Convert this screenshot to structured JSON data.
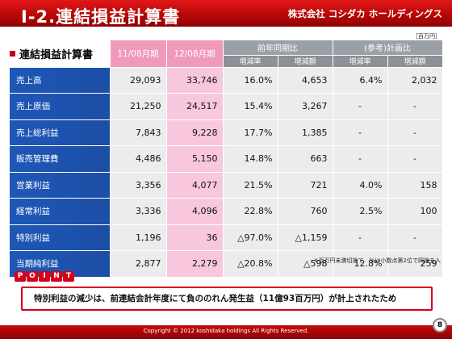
{
  "header": {
    "title": "Ⅰ-2.連結損益計算書",
    "company": "株式会社 コシダカ ホールディングス"
  },
  "unit": "［百万円］",
  "table_label": "連結損益計算書",
  "periods": [
    "11/08月期",
    "12/08月期"
  ],
  "groups": [
    "前年同期比",
    "(参考)計画比"
  ],
  "subheaders": [
    "増減率",
    "増減額",
    "増減率",
    "増減額"
  ],
  "rows": [
    {
      "label": "売上高",
      "p1": "29,093",
      "p2": "33,746",
      "yoy_rate": "16.0%",
      "yoy_amt": "4,653",
      "plan_rate": "6.4%",
      "plan_amt": "2,032"
    },
    {
      "label": "売上原価",
      "p1": "21,250",
      "p2": "24,517",
      "yoy_rate": "15.4%",
      "yoy_amt": "3,267",
      "plan_rate": "-",
      "plan_amt": "-"
    },
    {
      "label": "売上総利益",
      "p1": "7,843",
      "p2": "9,228",
      "yoy_rate": "17.7%",
      "yoy_amt": "1,385",
      "plan_rate": "-",
      "plan_amt": "-"
    },
    {
      "label": "販売管理費",
      "p1": "4,486",
      "p2": "5,150",
      "yoy_rate": "14.8%",
      "yoy_amt": "663",
      "plan_rate": "-",
      "plan_amt": "-"
    },
    {
      "label": "営業利益",
      "p1": "3,356",
      "p2": "4,077",
      "yoy_rate": "21.5%",
      "yoy_amt": "721",
      "plan_rate": "4.0%",
      "plan_amt": "158"
    },
    {
      "label": "経常利益",
      "p1": "3,336",
      "p2": "4,096",
      "yoy_rate": "22.8%",
      "yoy_amt": "760",
      "plan_rate": "2.5%",
      "plan_amt": "100"
    },
    {
      "label": "特別利益",
      "p1": "1,196",
      "p2": "36",
      "yoy_rate": "△97.0%",
      "yoy_amt": "△1,159",
      "plan_rate": "-",
      "plan_amt": "-"
    },
    {
      "label": "当期純利益",
      "p1": "2,877",
      "p2": "2,279",
      "yoy_rate": "△20.8%",
      "yoy_amt": "△598",
      "plan_rate": "12.8%",
      "plan_amt": "259"
    }
  ],
  "note": "※百万円未満切捨て　％は小数点第2位で四捨五入",
  "point": {
    "letters": [
      "P",
      "O",
      "I",
      "N",
      "T"
    ],
    "text": "特別利益の減少は、前連結会計年度にて負ののれん発生益（11億93百万円）が計上されたため"
  },
  "footer": {
    "copyright": "Copyright © 2012 koshidaka holdings All Rights Reserved.",
    "page": "8"
  }
}
